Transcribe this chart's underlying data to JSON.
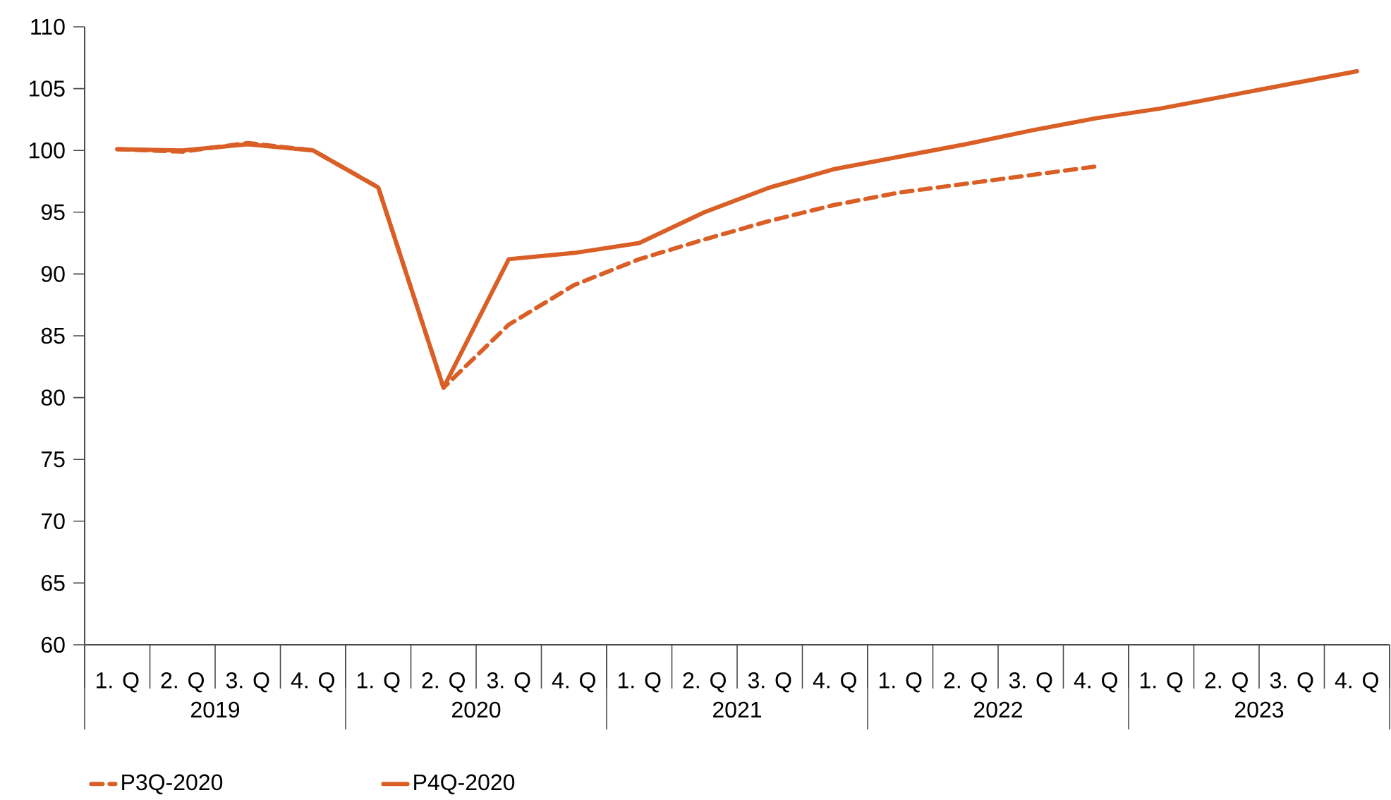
{
  "chart_data": {
    "type": "line",
    "categories": [
      "1. Q",
      "2. Q",
      "3. Q",
      "4. Q",
      "1. Q",
      "2. Q",
      "3. Q",
      "4. Q",
      "1. Q",
      "2. Q",
      "3. Q",
      "4. Q",
      "1. Q",
      "2. Q",
      "3. Q",
      "4. Q",
      "1. Q",
      "2. Q",
      "3. Q",
      "4. Q"
    ],
    "annotations": [
      "2019",
      "2020",
      "2021",
      "2022",
      "2023"
    ],
    "series": [
      {
        "name": "P3Q-2020",
        "color": "#d95f26",
        "line_style": "dashed",
        "values": [
          100.1,
          99.9,
          100.6,
          100.0,
          97.0,
          80.8,
          85.9,
          89.1,
          91.2,
          92.8,
          94.3,
          95.6,
          96.6,
          97.3,
          98.0,
          98.7,
          null,
          null,
          null,
          null
        ]
      },
      {
        "name": "P4Q-2020",
        "color": "#d95f26",
        "line_style": "solid",
        "values": [
          100.1,
          100.0,
          100.5,
          100.0,
          97.0,
          80.8,
          91.2,
          91.7,
          92.5,
          95.0,
          97.0,
          98.5,
          99.5,
          100.5,
          101.6,
          102.6,
          103.4,
          104.4,
          105.4,
          106.4
        ]
      }
    ],
    "ylim": [
      60,
      110
    ],
    "yticks": [
      60,
      65,
      70,
      75,
      80,
      85,
      90,
      95,
      100,
      105,
      110
    ],
    "grid": false,
    "legend": "bottom left",
    "marker": "none"
  }
}
